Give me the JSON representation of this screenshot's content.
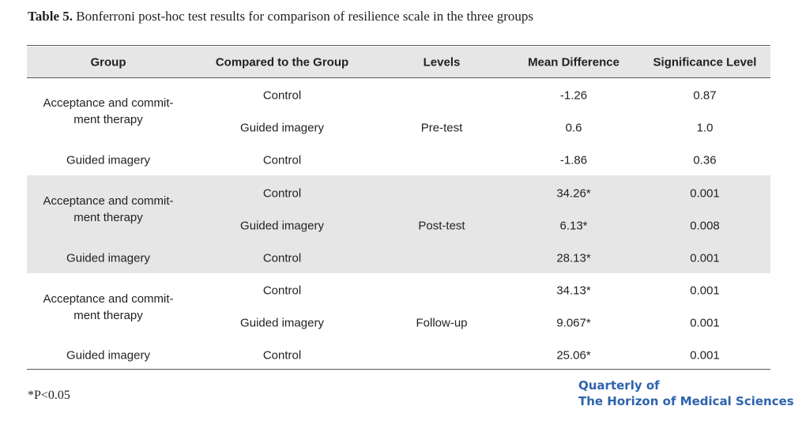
{
  "caption": {
    "label": "Table 5.",
    "text": "Bonferroni post-hoc test results for comparison of resilience scale in the three groups"
  },
  "table": {
    "headers": [
      "Group",
      "Compared to the Group",
      "Levels",
      "Mean Difference",
      "Significance Level"
    ],
    "sections": [
      {
        "level": "Pre-test",
        "group_act": "Acceptance and commit-ment therapy",
        "group_gi": "Guided imagery",
        "rows": [
          {
            "compared": "Control",
            "mean_diff": "-1.26",
            "sig": "0.87"
          },
          {
            "compared": "Guided imagery",
            "mean_diff": "0.6",
            "sig": "1.0"
          },
          {
            "compared": "Control",
            "mean_diff": "-1.86",
            "sig": "0.36"
          }
        ]
      },
      {
        "level": "Post-test",
        "group_act": "Acceptance and commit-ment therapy",
        "group_gi": "Guided imagery",
        "rows": [
          {
            "compared": "Control",
            "mean_diff": "34.26*",
            "sig": "0.001"
          },
          {
            "compared": "Guided imagery",
            "mean_diff": "6.13*",
            "sig": "0.008"
          },
          {
            "compared": "Control",
            "mean_diff": "28.13*",
            "sig": "0.001"
          }
        ]
      },
      {
        "level": "Follow-up",
        "group_act": "Acceptance and commit-ment therapy",
        "group_gi": "Guided imagery",
        "rows": [
          {
            "compared": "Control",
            "mean_diff": "34.13*",
            "sig": "0.001"
          },
          {
            "compared": "Guided imagery",
            "mean_diff": "9.067*",
            "sig": "0.001"
          },
          {
            "compared": "Control",
            "mean_diff": "25.06*",
            "sig": "0.001"
          }
        ]
      }
    ]
  },
  "footnote": "*P<0.05",
  "brand": {
    "line1": "Quarterly of",
    "line2": "The Horizon of Medical Sciences"
  },
  "colors": {
    "band": "#e6e6e6",
    "brand": "#2e63ad",
    "text": "#231f20"
  }
}
